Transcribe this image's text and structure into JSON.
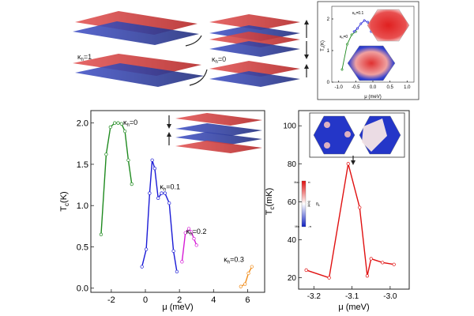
{
  "figure": {
    "illustration_labels": {
      "kappa_1": "κ",
      "kappa_1_sub": "h",
      "kappa_1_val": "=1",
      "kappa_0": "κ",
      "kappa_0_sub": "h",
      "kappa_0_val": "=0"
    },
    "colors": {
      "red_layer": "#c0392b",
      "blue_layer": "#2c3e9e",
      "frame": "#333333"
    }
  },
  "chart_data": [
    {
      "id": "left",
      "type": "line",
      "xlabel": "μ (meV)",
      "ylabel_main": "T",
      "ylabel_sub": "c",
      "ylabel_unit": "(K)",
      "xlim": [
        -3.2,
        7.0
      ],
      "ylim": [
        -0.05,
        2.15
      ],
      "xticks": [
        -2,
        0,
        2,
        4,
        6
      ],
      "xtick_labels": [
        "-2",
        "0",
        "2",
        "4",
        "6"
      ],
      "yticks": [
        0.0,
        0.5,
        1.0,
        1.5,
        2.0
      ],
      "ytick_labels": [
        "0.0",
        "0.5",
        "1.0",
        "1.5",
        "2.0"
      ],
      "series": [
        {
          "name": "κh=0",
          "label_main": "κ",
          "label_sub": "h",
          "label_val": "=0",
          "color": "#1f8a1f",
          "x": [
            -2.6,
            -2.3,
            -2.05,
            -1.8,
            -1.6,
            -1.4,
            -1.2,
            -1.0,
            -0.8
          ],
          "y": [
            0.65,
            1.62,
            1.95,
            2.0,
            2.0,
            1.99,
            1.9,
            1.55,
            1.26
          ]
        },
        {
          "name": "κh=0.1",
          "label_main": "κ",
          "label_sub": "h",
          "label_val": "=0.1",
          "color": "#1a1ad6",
          "x": [
            -0.2,
            0.05,
            0.25,
            0.4,
            0.55,
            0.75,
            0.95,
            1.15,
            1.4,
            1.65,
            1.85
          ],
          "y": [
            0.26,
            0.47,
            1.15,
            1.55,
            1.45,
            1.09,
            1.15,
            1.15,
            1.03,
            0.45,
            0.2
          ]
        },
        {
          "name": "κh=0.2",
          "label_main": "κ",
          "label_sub": "h",
          "label_val": "=0.2",
          "color": "#d61ad6",
          "x": [
            2.15,
            2.35,
            2.55,
            2.7,
            2.85,
            3.0
          ],
          "y": [
            0.32,
            0.67,
            0.72,
            0.68,
            0.6,
            0.52
          ]
        },
        {
          "name": "κh=0.3",
          "label_main": "κ",
          "label_sub": "h",
          "label_val": "=0.3",
          "color": "#f08c1a",
          "x": [
            5.6,
            5.85,
            6.05,
            6.25
          ],
          "y": [
            0.02,
            0.05,
            0.18,
            0.26
          ]
        }
      ]
    },
    {
      "id": "right",
      "type": "line",
      "xlabel": "μ (meV)",
      "ylabel_main": "T",
      "ylabel_sub": "c",
      "ylabel_unit": "(mK)",
      "xlim": [
        -3.24,
        -2.95
      ],
      "ylim": [
        14,
        108
      ],
      "xticks": [
        -3.2,
        -3.1,
        -3.0
      ],
      "xtick_labels": [
        "-3.2",
        "-3.1",
        "-3.0"
      ],
      "yticks": [
        20,
        40,
        60,
        80,
        100
      ],
      "ytick_labels": [
        "20",
        "40",
        "60",
        "80",
        "100"
      ],
      "series": [
        {
          "name": "Tc",
          "color": "#e01010",
          "x": [
            -3.22,
            -3.16,
            -3.11,
            -3.08,
            -3.06,
            -3.05,
            -3.02,
            -2.99
          ],
          "y": [
            24,
            20,
            80,
            57,
            21,
            30,
            28,
            27
          ]
        }
      ],
      "colorbar": {
        "max_label": "Max",
        "min_label": "Min",
        "top_val": "π",
        "bottom_val": "-π",
        "mid_label": "θ",
        "mid_sub": "k",
        "side_label": "|Δ(k)|"
      }
    },
    {
      "id": "inset",
      "type": "line",
      "xlabel": "μ (meV)",
      "ylabel_main": "T",
      "ylabel_sub": "c",
      "ylabel_unit": "(K)",
      "xlim": [
        -1.2,
        1.2
      ],
      "ylim": [
        0,
        2.4
      ],
      "xticks": [
        -1.0,
        -0.5,
        0.0,
        0.5,
        1.0
      ],
      "xtick_labels": [
        "-1.0",
        "-0.5",
        "0.0",
        "0.5",
        "1.0"
      ],
      "yticks": [
        0,
        1,
        2
      ],
      "ytick_labels": [
        "0",
        "1",
        "2"
      ],
      "series": [
        {
          "name": "κh=0",
          "color": "#1f8a1f",
          "x": [
            -0.9,
            -0.75,
            -0.62,
            -0.5
          ],
          "y": [
            0.4,
            1.2,
            1.5,
            1.6
          ]
        },
        {
          "name": "κh=0.1",
          "color": "#1a1ad6",
          "x": [
            -0.55,
            -0.45,
            -0.35,
            -0.25,
            -0.15,
            -0.05
          ],
          "y": [
            1.6,
            1.7,
            1.85,
            1.95,
            1.9,
            1.6
          ]
        }
      ],
      "annotations": [
        {
          "text": "κ",
          "sub": "h",
          "val": "=0.1"
        },
        {
          "text": "κ",
          "sub": "h",
          "val": "=0"
        }
      ]
    }
  ]
}
